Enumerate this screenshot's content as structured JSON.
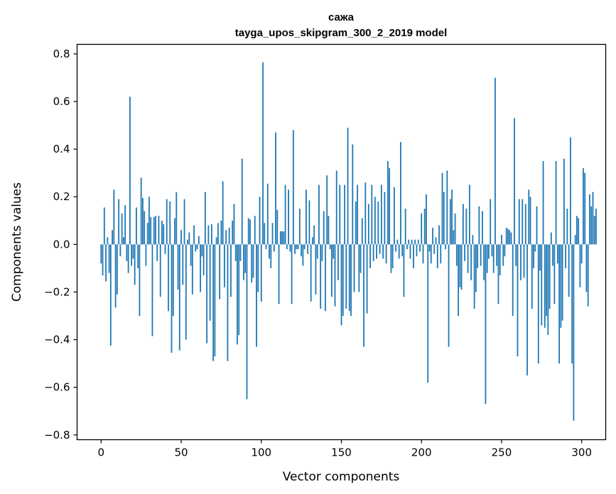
{
  "chart_data": {
    "type": "bar",
    "title": "сажа",
    "subtitle": "tayga_upos_skipgram_300_2_2019 model",
    "xlabel": "Vector components",
    "ylabel": "Components values",
    "xlim": [
      -15,
      315
    ],
    "ylim": [
      -0.82,
      0.84
    ],
    "x_ticks": [
      0,
      50,
      100,
      150,
      200,
      250,
      300
    ],
    "x_tick_labels": [
      "0",
      "50",
      "100",
      "150",
      "200",
      "250",
      "300"
    ],
    "y_ticks": [
      -0.8,
      -0.6,
      -0.4,
      -0.2,
      0.0,
      0.2,
      0.4,
      0.6,
      0.8
    ],
    "y_tick_labels": [
      "−0.8",
      "−0.6",
      "−0.4",
      "−0.2",
      "0.0",
      "0.2",
      "0.4",
      "0.6",
      "0.8"
    ],
    "bar_color": "#1f77b4",
    "values": [
      -0.08,
      -0.13,
      0.155,
      -0.155,
      0.03,
      -0.12,
      -0.425,
      0.06,
      0.23,
      -0.265,
      -0.21,
      0.19,
      -0.05,
      0.13,
      0.03,
      0.165,
      -0.07,
      -0.12,
      0.62,
      -0.09,
      -0.06,
      -0.17,
      0.155,
      -0.1,
      -0.3,
      0.28,
      0.195,
      0.14,
      -0.09,
      0.09,
      0.2,
      0.115,
      -0.385,
      0.115,
      0.12,
      -0.07,
      0.12,
      -0.22,
      0.1,
      0.085,
      -0.04,
      0.19,
      -0.28,
      0.18,
      -0.455,
      -0.3,
      0.11,
      0.22,
      -0.19,
      -0.445,
      0.06,
      -0.17,
      0.19,
      -0.4,
      0.02,
      0.05,
      -0.09,
      -0.21,
      0.08,
      -0.03,
      -0.02,
      0.035,
      -0.2,
      -0.05,
      -0.13,
      0.22,
      -0.415,
      0.08,
      -0.32,
      0.085,
      -0.49,
      -0.47,
      0.03,
      0.09,
      -0.23,
      0.1,
      0.265,
      -0.18,
      0.06,
      -0.49,
      0.07,
      -0.22,
      0.1,
      0.17,
      -0.07,
      -0.42,
      -0.38,
      -0.07,
      0.36,
      -0.15,
      -0.12,
      -0.65,
      0.11,
      0.105,
      -0.16,
      -0.14,
      0.12,
      -0.43,
      -0.2,
      0.2,
      -0.24,
      0.765,
      0.09,
      -0.02,
      0.255,
      -0.06,
      -0.1,
      0.09,
      -0.03,
      0.47,
      0.145,
      -0.25,
      0.055,
      0.055,
      0.055,
      0.25,
      -0.02,
      0.23,
      -0.03,
      -0.25,
      0.48,
      -0.04,
      -0.02,
      -0.02,
      0.15,
      -0.05,
      -0.09,
      -0.02,
      0.23,
      -0.04,
      0.185,
      -0.24,
      0.03,
      0.08,
      -0.21,
      -0.06,
      0.25,
      -0.27,
      -0.07,
      0.14,
      -0.28,
      0.29,
      0.12,
      -0.02,
      -0.22,
      -0.06,
      -0.26,
      0.31,
      -0.15,
      0.25,
      -0.34,
      -0.3,
      0.25,
      -0.27,
      0.49,
      -0.28,
      -0.3,
      0.42,
      -0.2,
      0.18,
      0.25,
      -0.2,
      -0.12,
      0.11,
      -0.43,
      0.26,
      -0.29,
      0.17,
      -0.1,
      0.25,
      -0.07,
      0.2,
      -0.06,
      0.18,
      -0.04,
      0.25,
      -0.06,
      0.22,
      -0.08,
      0.35,
      0.32,
      -0.12,
      -0.1,
      0.24,
      -0.03,
      0.02,
      -0.06,
      0.43,
      -0.05,
      -0.22,
      0.15,
      -0.02,
      0.02,
      -0.06,
      0.02,
      -0.1,
      0.02,
      -0.05,
      0.02,
      -0.03,
      0.13,
      -0.08,
      0.15,
      0.21,
      -0.58,
      -0.03,
      -0.08,
      0.07,
      -0.04,
      0.03,
      -0.1,
      0.08,
      -0.08,
      0.3,
      0.22,
      -0.02,
      0.31,
      -0.43,
      0.19,
      0.23,
      0.06,
      0.13,
      -0.09,
      -0.3,
      -0.18,
      -0.19,
      0.17,
      -0.07,
      0.15,
      -0.12,
      0.25,
      -0.15,
      0.04,
      -0.27,
      -0.2,
      -0.1,
      0.16,
      -0.09,
      0.14,
      -0.15,
      -0.67,
      -0.12,
      -0.06,
      0.19,
      -0.05,
      -0.12,
      0.7,
      -0.09,
      -0.25,
      -0.13,
      0.04,
      -0.09,
      -0.05,
      0.07,
      0.065,
      0.06,
      0.05,
      -0.3,
      0.53,
      -0.09,
      -0.47,
      0.19,
      -0.15,
      0.19,
      -0.14,
      0.17,
      -0.55,
      0.23,
      0.2,
      -0.27,
      -0.1,
      -0.03,
      0.16,
      -0.5,
      -0.11,
      -0.34,
      0.35,
      -0.35,
      -0.3,
      -0.38,
      -0.27,
      0.05,
      -0.09,
      -0.25,
      0.35,
      -0.08,
      -0.5,
      -0.35,
      -0.32,
      0.36,
      -0.1,
      0.15,
      -0.22,
      0.45,
      -0.5,
      -0.74,
      0.04,
      0.12,
      0.11,
      -0.18,
      -0.08,
      0.32,
      0.3,
      -0.2,
      -0.26,
      0.21,
      0.16,
      0.22,
      0.12,
      0.15
    ]
  }
}
